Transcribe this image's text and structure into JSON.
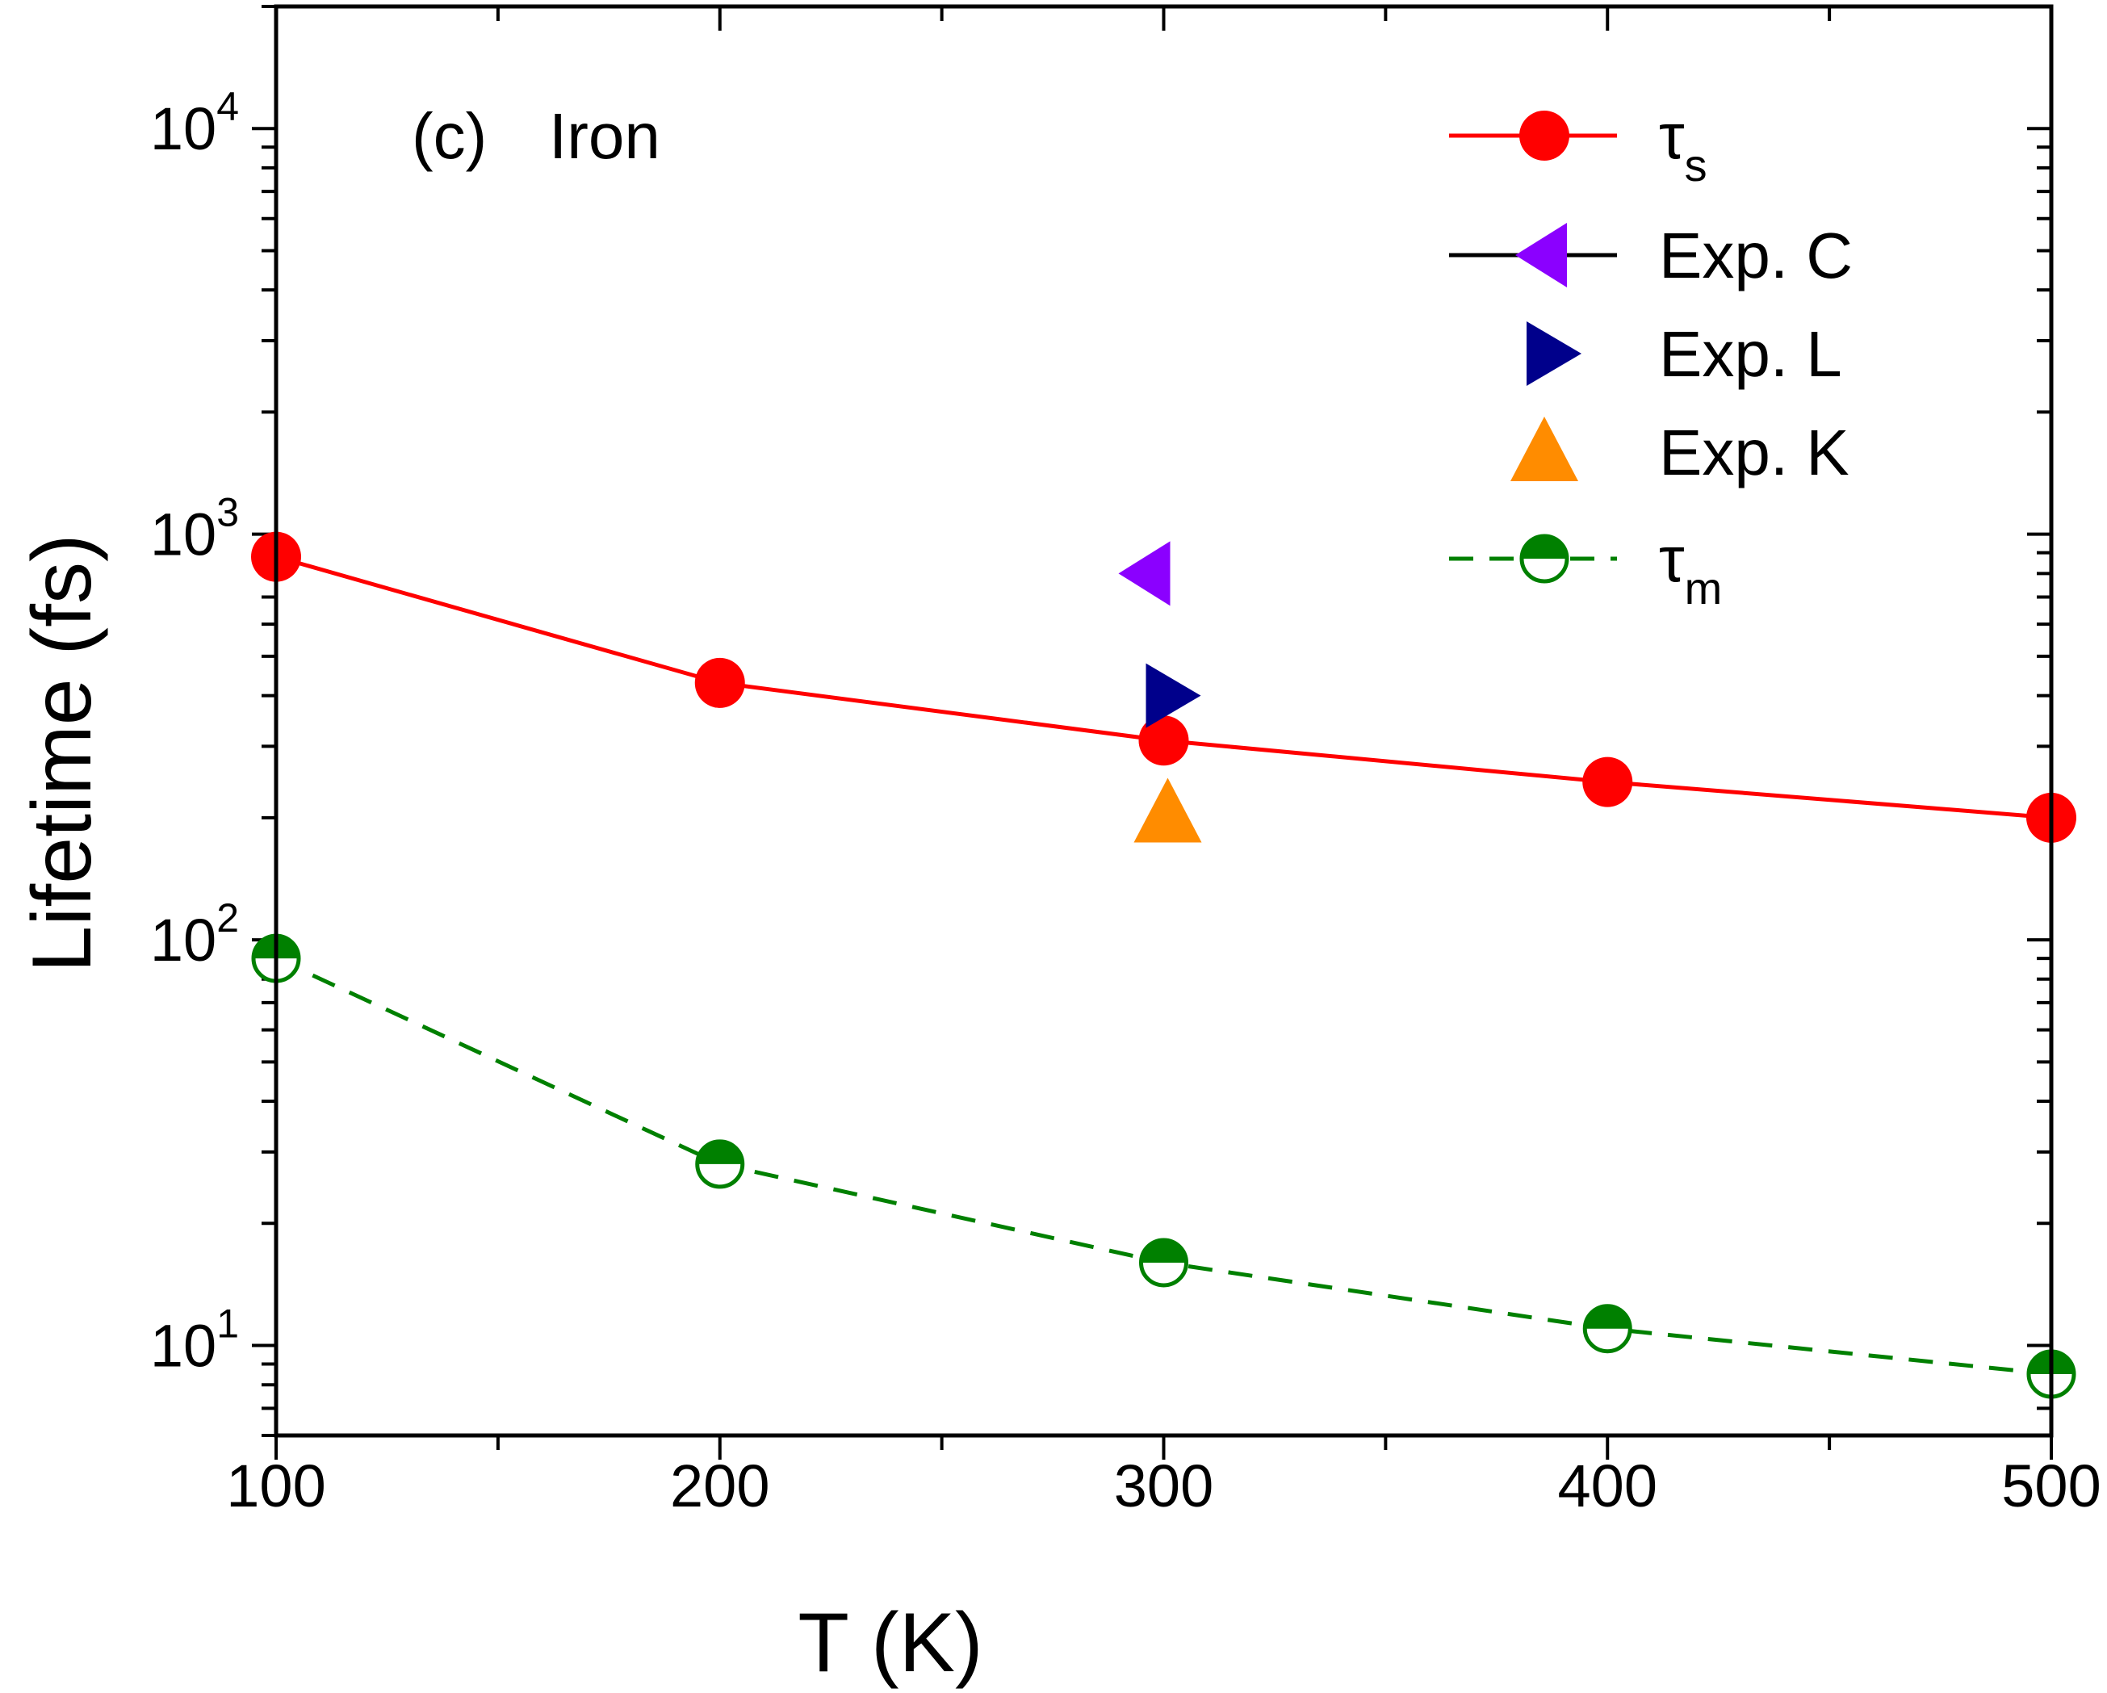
{
  "chart_data": {
    "type": "line",
    "title": "",
    "panel_label": "(c)",
    "material": "Iron",
    "xlabel": "T (K)",
    "ylabel": "Lifetime (fs)",
    "xlim": [
      100,
      500
    ],
    "ylim": [
      6,
      20000
    ],
    "yscale": "log",
    "xticks": [
      100,
      200,
      300,
      400,
      500
    ],
    "xtick_labels": [
      "100",
      "200",
      "300",
      "400",
      "500"
    ],
    "yticks": [
      {
        "value": 10,
        "base": "10",
        "exp": "1"
      },
      {
        "value": 100,
        "base": "10",
        "exp": "2"
      },
      {
        "value": 1000,
        "base": "10",
        "exp": "3"
      },
      {
        "value": 10000,
        "base": "10",
        "exp": "4"
      }
    ],
    "legend_position": "top-right",
    "series": [
      {
        "name": "τs",
        "label_main": "τ",
        "label_sub": "s",
        "style": "solid-line-filled-circle",
        "color": "#ff0000",
        "x": [
          100,
          200,
          300,
          400,
          500
        ],
        "values": [
          880,
          430,
          310,
          245,
          200
        ]
      },
      {
        "name": "Exp. C",
        "label_main": "Exp. C",
        "style": "left-triangle",
        "color": "#8b00ff",
        "x": [
          300
        ],
        "values": [
          800
        ]
      },
      {
        "name": "Exp. L",
        "label_main": "Exp. L",
        "style": "right-triangle",
        "color": "#00008b",
        "x": [
          300
        ],
        "values": [
          400
        ]
      },
      {
        "name": "Exp. K",
        "label_main": "Exp. K",
        "style": "up-triangle",
        "color": "#ff8c00",
        "x": [
          300
        ],
        "values": [
          205
        ]
      },
      {
        "name": "τm",
        "label_main": "τ",
        "label_sub": "m",
        "style": "dashed-line-half-filled-circle",
        "color": "#008000",
        "x": [
          100,
          200,
          300,
          400,
          500
        ],
        "values": [
          90,
          28,
          16,
          11,
          8.5
        ]
      }
    ]
  }
}
